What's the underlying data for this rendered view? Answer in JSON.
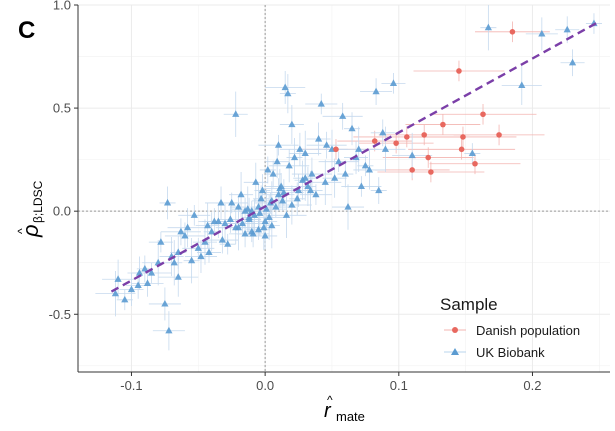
{
  "chart_data": {
    "type": "scatter",
    "panel_label": "C",
    "xlabel": "r̂_mate",
    "xlabel_main": "r",
    "xlabel_sub": "mate",
    "ylabel": "ρ̂_β;LDSC",
    "ylabel_main": "ρ",
    "ylabel_sub": "β;LDSC",
    "hat": "^",
    "xlim": [
      -0.14,
      0.258
    ],
    "ylim": [
      -0.78,
      1.0
    ],
    "xticks": [
      -0.1,
      0.0,
      0.1,
      0.2
    ],
    "xtick_labels": [
      "-0.1",
      "0.0",
      "0.1",
      "0.2"
    ],
    "yticks": [
      -0.5,
      0.0,
      0.5,
      1.0
    ],
    "ytick_labels": [
      "-0.5",
      "0.0",
      "0.5",
      "1.0"
    ],
    "grid": true,
    "reference_lines": {
      "x": 0,
      "y": 0
    },
    "fit_line": {
      "x": [
        -0.115,
        0.25
      ],
      "y": [
        -0.39,
        0.92
      ],
      "color": "#7b3fa8",
      "style": "dashed"
    },
    "legend": {
      "title": "Sample",
      "placement": "bottom-right",
      "entries": [
        "Danish population",
        "UK Biobank"
      ]
    },
    "colors": {
      "danish": "#e8685f",
      "ukb": "#5b9bd1",
      "fit": "#7b3fa8"
    },
    "series": [
      {
        "name": "Danish population",
        "marker": "circle",
        "x": [
          0.185,
          0.145,
          0.163,
          0.133,
          0.119,
          0.106,
          0.082,
          0.175,
          0.148,
          0.098,
          0.122,
          0.147,
          0.11,
          0.157,
          0.124,
          0.053
        ],
        "y": [
          0.87,
          0.68,
          0.47,
          0.42,
          0.37,
          0.36,
          0.34,
          0.37,
          0.36,
          0.33,
          0.26,
          0.3,
          0.2,
          0.23,
          0.19,
          0.3
        ]
      },
      {
        "name": "UK Biobank",
        "marker": "triangle",
        "x": [
          0.246,
          0.226,
          0.207,
          0.192,
          0.167,
          0.096,
          0.083,
          0.015,
          0.017,
          -0.022,
          0.042,
          0.058,
          0.065,
          0.02,
          0.03,
          0.01,
          0.002,
          0.04,
          0.05,
          0.07,
          0.075,
          0.088,
          0.025,
          0.005,
          -0.005,
          -0.01,
          0.012,
          0.035,
          0.028,
          -0.018,
          -0.025,
          -0.015,
          -0.008,
          0.0,
          0.003,
          0.008,
          -0.003,
          -0.012,
          -0.03,
          -0.02,
          -0.01,
          0.0,
          0.01,
          0.02,
          0.005,
          -0.005,
          -0.015,
          -0.035,
          -0.04,
          -0.045,
          -0.05,
          -0.06,
          -0.065,
          -0.07,
          -0.08,
          -0.085,
          -0.09,
          -0.1,
          -0.11,
          -0.112,
          -0.105,
          -0.095,
          -0.075,
          -0.065,
          -0.055,
          -0.042,
          -0.032,
          -0.022,
          -0.012,
          -0.004,
          0.004,
          0.014,
          0.024,
          0.034,
          0.045,
          0.055,
          0.06,
          0.068,
          0.078,
          0.09,
          -0.028,
          -0.038,
          -0.048,
          -0.058,
          -0.068,
          -0.078,
          -0.088,
          0.018,
          0.022,
          0.03,
          0.038,
          0.046,
          -0.002,
          -0.007,
          -0.013,
          -0.017,
          0.006,
          0.009,
          0.011,
          0.016,
          -0.02,
          -0.026,
          -0.033,
          0.001,
          -0.001,
          0.013,
          -0.009,
          0.026,
          0.032,
          -0.043,
          -0.053,
          -0.063,
          -0.073,
          0.052,
          0.062,
          0.072,
          0.085,
          -0.094,
          -0.072,
          0.11,
          0.155,
          0.23
        ],
        "y": [
          0.91,
          0.88,
          0.86,
          0.61,
          0.89,
          0.62,
          0.58,
          0.6,
          0.57,
          0.47,
          0.52,
          0.46,
          0.4,
          0.42,
          0.28,
          0.32,
          0.2,
          0.35,
          0.3,
          0.3,
          0.22,
          0.38,
          0.1,
          0.05,
          0.02,
          0.0,
          0.12,
          0.18,
          0.15,
          0.08,
          0.04,
          0.0,
          -0.02,
          -0.05,
          -0.03,
          0.02,
          0.06,
          -0.04,
          -0.06,
          -0.08,
          -0.1,
          -0.12,
          0.08,
          0.03,
          -0.07,
          -0.09,
          -0.11,
          -0.05,
          -0.1,
          -0.15,
          -0.18,
          -0.12,
          -0.2,
          -0.22,
          -0.25,
          -0.3,
          -0.28,
          -0.38,
          -0.33,
          -0.4,
          -0.43,
          -0.36,
          -0.45,
          -0.32,
          -0.24,
          -0.2,
          -0.14,
          -0.08,
          -0.03,
          -0.01,
          0.04,
          0.09,
          0.06,
          0.1,
          0.14,
          0.24,
          0.18,
          0.26,
          0.2,
          0.3,
          -0.16,
          -0.05,
          -0.22,
          -0.08,
          -0.25,
          -0.15,
          -0.35,
          0.22,
          0.26,
          0.16,
          0.08,
          0.32,
          0.1,
          0.14,
          0.01,
          -0.06,
          0.18,
          0.24,
          0.11,
          -0.02,
          0.02,
          -0.04,
          0.04,
          0.01,
          -0.08,
          0.05,
          -0.11,
          0.3,
          0.12,
          -0.07,
          -0.02,
          -0.1,
          0.04,
          0.16,
          0.02,
          0.12,
          0.1,
          -0.3,
          -0.58,
          0.27,
          0.28,
          0.72
        ]
      }
    ]
  }
}
